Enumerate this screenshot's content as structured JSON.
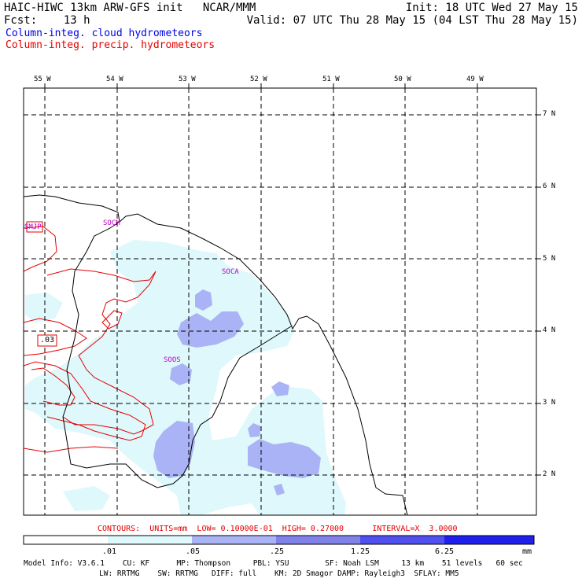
{
  "header": {
    "line1_left": "HAIC-HIWC 13km ARW-GFS init   NCAR/MMM",
    "line1_right": "Init: 18 UTC Wed 27 May 15",
    "line2_left": "Fcst:    13 h",
    "line2_right": "Valid: 07 UTC Thu 28 May 15 (04 LST Thu 28 May 15)",
    "field_cloud": "Column-integ. cloud hydrometeors",
    "field_precip": "Column-integ. precip. hydrometeors"
  },
  "colors": {
    "cloud_text": "#0000e6",
    "precip_text": "#e60000",
    "shade_1": "#dff8fb",
    "shade_2": "#aab3f5",
    "shade_3": "#8082ea",
    "shade_4": "#5050f0",
    "shade_5": "#2020ee",
    "station": "#c000c0"
  },
  "map": {
    "lon_labels": [
      "55 W",
      "54 W",
      "53 W",
      "52 W",
      "51 W",
      "50 W",
      "49 W"
    ],
    "lat_labels": [
      "7 N",
      "6 N",
      "5 N",
      "4 N",
      "3 N",
      "2 N"
    ],
    "stations": [
      "SMJP",
      "SOCM",
      "SOCA",
      "SOOS"
    ],
    "contour_label": ".03"
  },
  "contours_line": "CONTOURS:  UNITS=mm  LOW= 0.10000E-01  HIGH= 0.27000      INTERVAL=X  3.0000",
  "colorbar": {
    "levels": [
      ".01",
      ".05",
      ".25",
      "1.25",
      "6.25"
    ],
    "units": "mm"
  },
  "model_info": {
    "line1": "Model Info: V3.6.1    CU: KF      MP: Thompson     PBL: YSU        SF: Noah LSM     13 km    51 levels   60 sec",
    "line2": "LW: RRTMG    SW: RRTMG   DIFF: full    KM: 2D Smagor DAMP: Rayleigh3  SFLAY: MM5"
  }
}
